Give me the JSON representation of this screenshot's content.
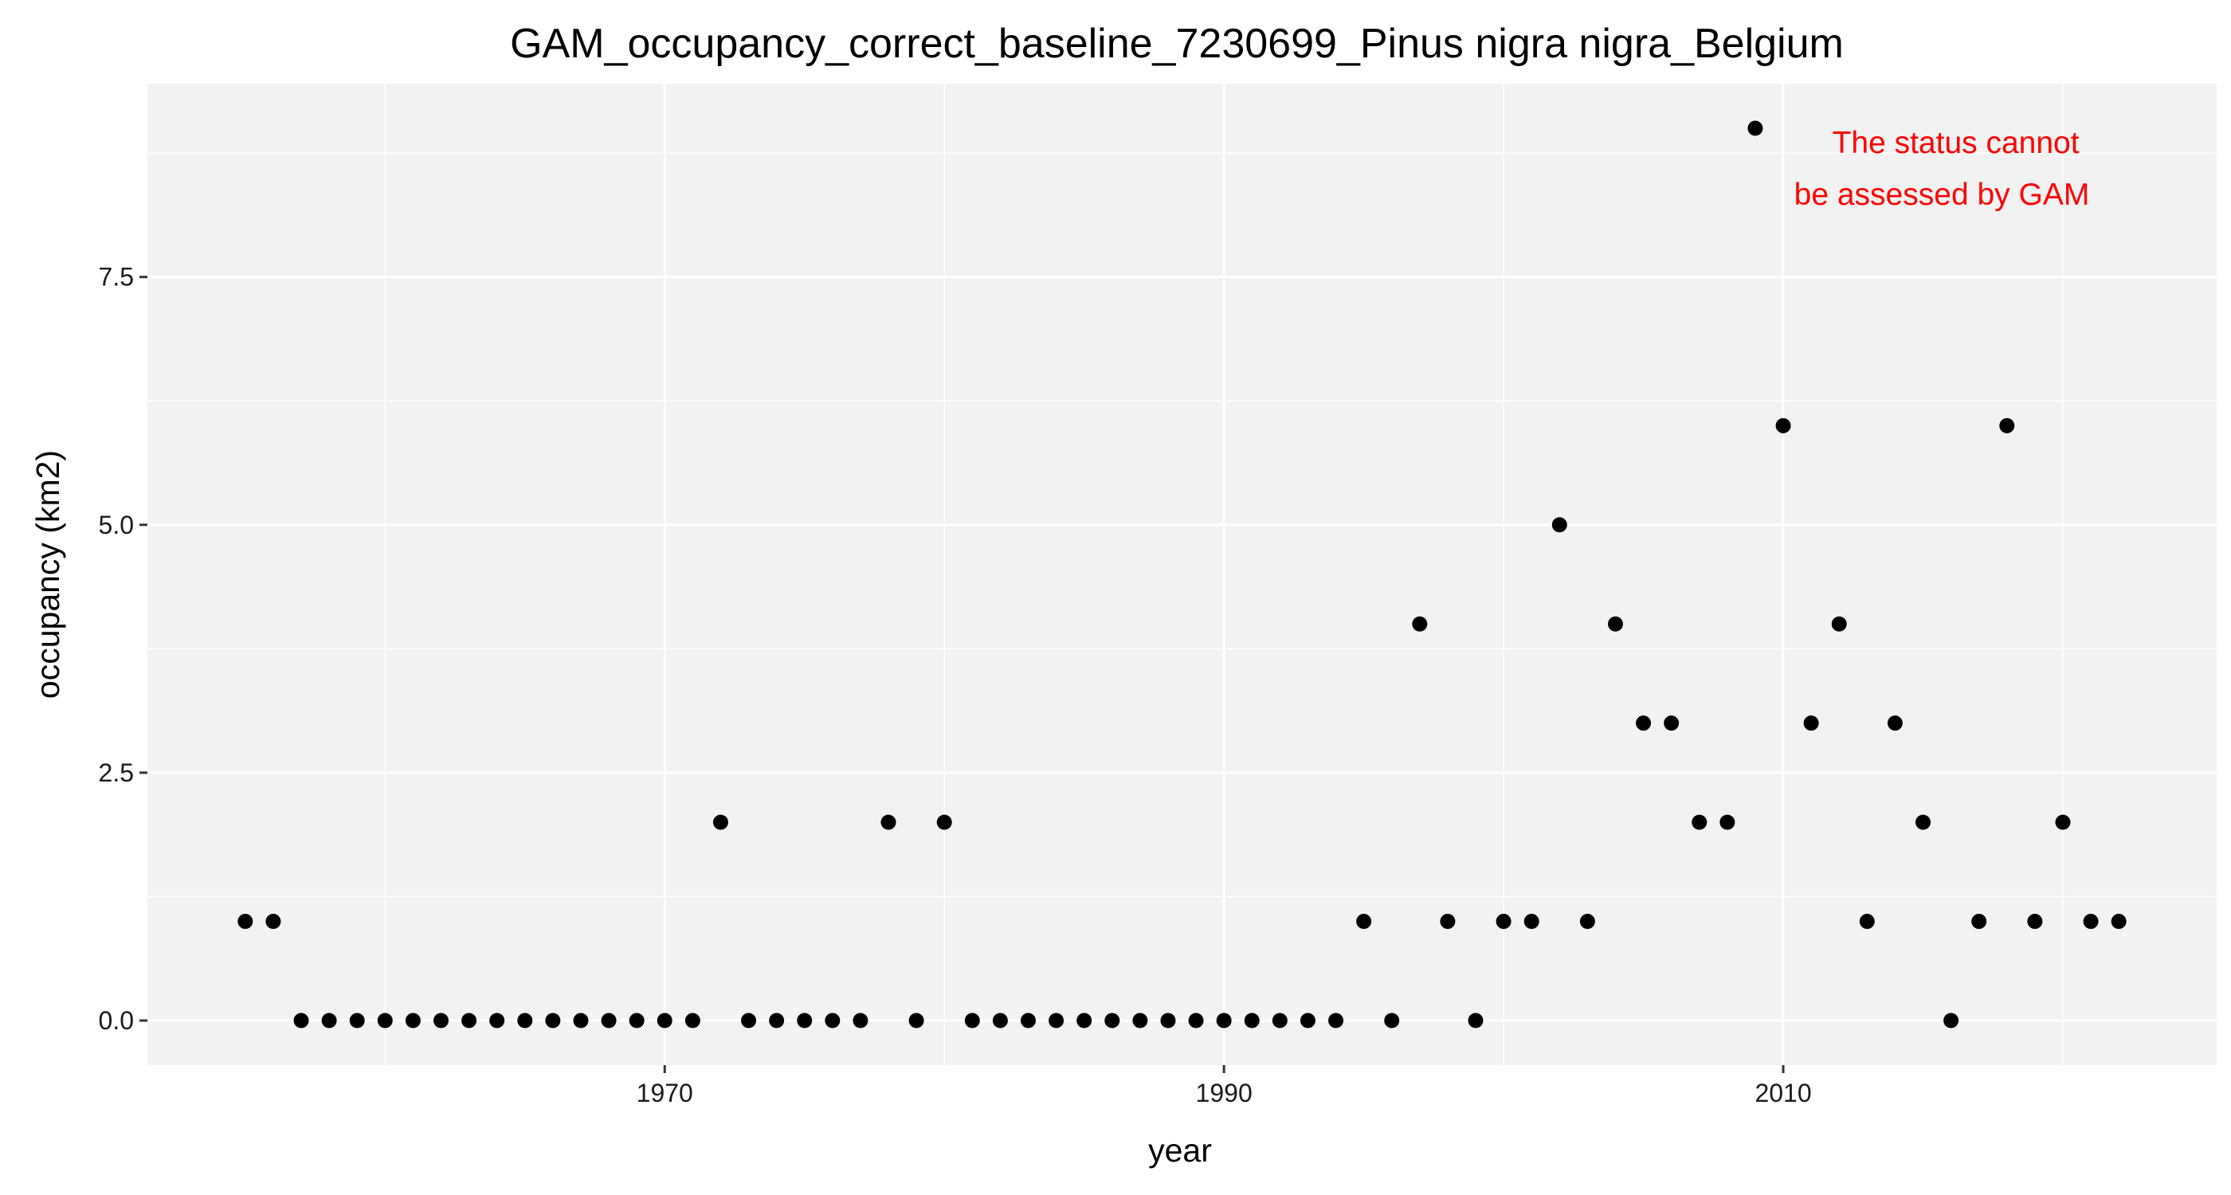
{
  "chart_data": {
    "type": "scatter",
    "title": "GAM_occupancy_correct_baseline_7230699_Pinus nigra nigra_Belgium",
    "xlabel": "year",
    "ylabel": "occupancy (km2)",
    "xlim": [
      1951.5,
      2025.5
    ],
    "ylim": [
      -0.45,
      9.45
    ],
    "x_ticks": [
      1970,
      1990,
      2010
    ],
    "y_ticks": [
      0,
      2.5,
      5,
      7.5
    ],
    "y_tick_labels": [
      "0.0",
      "2.5",
      "5.0",
      "7.5"
    ],
    "grid": true,
    "point_color": "#000000",
    "panel_color": "#f2f2f2",
    "grid_color": "#ffffff",
    "annotation": {
      "lines": [
        "The status cannot",
        "be assessed by GAM"
      ],
      "color": "#ff0000"
    },
    "x": [
      1955,
      1956,
      1957,
      1958,
      1959,
      1960,
      1961,
      1962,
      1963,
      1964,
      1965,
      1966,
      1967,
      1968,
      1969,
      1970,
      1971,
      1972,
      1973,
      1974,
      1975,
      1976,
      1977,
      1978,
      1979,
      1980,
      1981,
      1982,
      1983,
      1984,
      1985,
      1986,
      1987,
      1988,
      1989,
      1990,
      1991,
      1992,
      1993,
      1994,
      1995,
      1996,
      1997,
      1998,
      1999,
      2000,
      2001,
      2002,
      2003,
      2004,
      2005,
      2006,
      2007,
      2008,
      2009,
      2010,
      2011,
      2012,
      2013,
      2014,
      2015,
      2016,
      2017,
      2018,
      2019,
      2020,
      2021,
      2022
    ],
    "y": [
      1,
      1,
      0,
      0,
      0,
      0,
      0,
      0,
      0,
      0,
      0,
      0,
      0,
      0,
      0,
      0,
      0,
      2,
      0,
      0,
      0,
      0,
      0,
      2,
      0,
      2,
      0,
      0,
      0,
      0,
      0,
      0,
      0,
      0,
      0,
      0,
      0,
      0,
      0,
      0,
      1,
      0,
      4,
      1,
      0,
      1,
      1,
      5,
      1,
      4,
      3,
      3,
      2,
      2,
      9,
      6,
      3,
      4,
      1,
      3,
      2,
      0,
      1,
      6,
      1,
      2,
      1,
      1
    ]
  }
}
